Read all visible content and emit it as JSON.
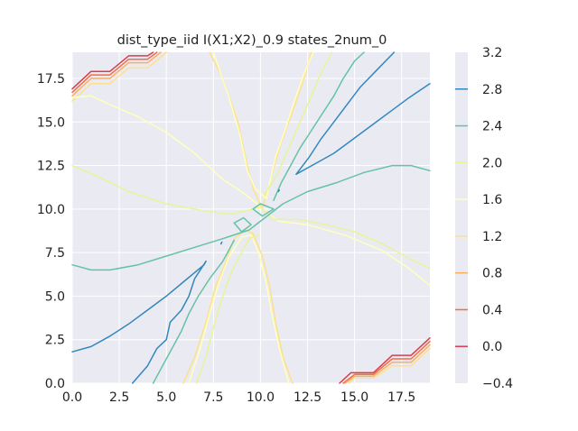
{
  "chart_data": {
    "type": "contour",
    "title": "dist_type_iid I(X1;X2)_0.9 states_2num_0",
    "xlabel": "",
    "ylabel": "",
    "xlim": [
      0,
      19
    ],
    "ylim": [
      0,
      19
    ],
    "x_ticks": [
      0.0,
      2.5,
      5.0,
      7.5,
      10.0,
      12.5,
      15.0,
      17.5
    ],
    "x_tick_labels": [
      "0.0",
      "2.5",
      "5.0",
      "7.5",
      "10.0",
      "12.5",
      "15.0",
      "17.5"
    ],
    "y_ticks": [
      0.0,
      2.5,
      5.0,
      7.5,
      10.0,
      12.5,
      15.0,
      17.5
    ],
    "y_tick_labels": [
      "0.0",
      "2.5",
      "5.0",
      "7.5",
      "10.0",
      "12.5",
      "15.0",
      "17.5"
    ],
    "grid": true,
    "background_color": "#eaeaf2",
    "colorbar": {
      "ticks": [
        3.2,
        2.8,
        2.4,
        2.0,
        1.6,
        1.2,
        0.8,
        0.4,
        0.0,
        -0.4
      ],
      "tick_labels": [
        "3.2",
        "2.8",
        "2.4",
        "2.0",
        "1.6",
        "1.2",
        "0.8",
        "0.4",
        "0.0",
        "−0.4"
      ],
      "range": [
        -0.4,
        3.2
      ]
    },
    "levels": [
      {
        "level": 0.0,
        "color": "#d53e4f",
        "segments": [
          [
            [
              0,
              16.9
            ],
            [
              1,
              17.9
            ],
            [
              2,
              17.9
            ],
            [
              3,
              18.8
            ],
            [
              4,
              18.8
            ],
            [
              4.3,
              19
            ]
          ],
          [
            [
              14.2,
              0
            ],
            [
              14.8,
              0.6
            ],
            [
              16,
              0.6
            ],
            [
              17,
              1.6
            ],
            [
              18,
              1.6
            ],
            [
              19,
              2.6
            ]
          ]
        ]
      },
      {
        "level": 0.4,
        "color": "#f46d43",
        "segments": [
          [
            [
              0,
              16.7
            ],
            [
              1,
              17.7
            ],
            [
              2,
              17.7
            ],
            [
              3,
              18.6
            ],
            [
              4,
              18.6
            ],
            [
              4.5,
              19
            ]
          ],
          [
            [
              14.4,
              0
            ],
            [
              15,
              0.5
            ],
            [
              16,
              0.5
            ],
            [
              17,
              1.4
            ],
            [
              18,
              1.4
            ],
            [
              19,
              2.4
            ]
          ]
        ]
      },
      {
        "level": 0.8,
        "color": "#fdae61",
        "segments": [
          [
            [
              0,
              16.5
            ],
            [
              1,
              17.5
            ],
            [
              2,
              17.5
            ],
            [
              3,
              18.4
            ],
            [
              4,
              18.4
            ],
            [
              4.7,
              19
            ]
          ],
          [
            [
              14.5,
              0
            ],
            [
              15,
              0.4
            ],
            [
              16,
              0.4
            ],
            [
              17,
              1.2
            ],
            [
              18,
              1.2
            ],
            [
              19,
              2.2
            ]
          ]
        ]
      },
      {
        "level": 1.2,
        "color": "#fee08b",
        "segments": [
          [
            [
              0,
              16.2
            ],
            [
              1,
              17.2
            ],
            [
              2,
              17.2
            ],
            [
              3,
              18.1
            ],
            [
              4,
              18.1
            ],
            [
              5,
              19
            ]
          ],
          [
            [
              14.7,
              0
            ],
            [
              15,
              0.3
            ],
            [
              16,
              0.3
            ],
            [
              17,
              1.0
            ],
            [
              18,
              1.0
            ],
            [
              19,
              2.0
            ]
          ],
          [
            [
              7.3,
              19
            ],
            [
              8,
              17.5
            ],
            [
              8.8,
              15
            ],
            [
              9.3,
              12.5
            ],
            [
              9.6,
              11.2
            ],
            [
              10.1,
              10.0
            ],
            [
              11,
              13.5
            ],
            [
              11.5,
              15
            ],
            [
              12,
              16.5
            ],
            [
              12.3,
              17.5
            ],
            [
              12.7,
              19
            ]
          ],
          [
            [
              5.9,
              0
            ],
            [
              6.5,
              1.5
            ],
            [
              7.1,
              3.5
            ],
            [
              7.6,
              5.5
            ],
            [
              8.1,
              6.8
            ],
            [
              8.6,
              8.3
            ],
            [
              9.2,
              8.8
            ],
            [
              9.6,
              8.6
            ],
            [
              10.1,
              7.3
            ],
            [
              10.5,
              5.5
            ],
            [
              10.8,
              3.5
            ],
            [
              11.2,
              1.5
            ],
            [
              11.7,
              0
            ]
          ]
        ]
      },
      {
        "level": 1.6,
        "color": "#ffffbf",
        "segments": [
          [
            [
              0,
              16.4
            ],
            [
              1,
              16.5
            ],
            [
              2,
              16
            ],
            [
              3.5,
              15.3
            ],
            [
              5,
              14.4
            ],
            [
              6.5,
              13.2
            ],
            [
              8,
              11.7
            ],
            [
              9,
              11
            ],
            [
              9.7,
              10.4
            ],
            [
              10.4,
              9.7
            ],
            [
              11,
              9.3
            ],
            [
              12.5,
              9.1
            ],
            [
              14.5,
              8.5
            ],
            [
              16.5,
              7.6
            ],
            [
              18,
              6.5
            ],
            [
              19,
              5.6
            ]
          ],
          [
            [
              7.5,
              19
            ],
            [
              8.3,
              16.5
            ],
            [
              8.9,
              14.3
            ],
            [
              9.3,
              12.2
            ],
            [
              9.7,
              11.2
            ],
            [
              10.3,
              10.6
            ],
            [
              10.8,
              13
            ],
            [
              11.3,
              14.5
            ],
            [
              11.8,
              16.2
            ],
            [
              12.4,
              18
            ],
            [
              12.8,
              19
            ]
          ],
          [
            [
              6.2,
              0
            ],
            [
              6.8,
              2
            ],
            [
              7.3,
              4
            ],
            [
              7.8,
              5.8
            ],
            [
              8.3,
              7.2
            ],
            [
              9,
              8.4
            ],
            [
              9.5,
              8.5
            ],
            [
              9.9,
              7.5
            ],
            [
              10.3,
              5.8
            ],
            [
              10.6,
              4
            ],
            [
              11,
              2
            ],
            [
              11.5,
              0
            ]
          ]
        ]
      },
      {
        "level": 2.0,
        "color": "#e6f598",
        "segments": [
          [
            [
              0,
              12.5
            ],
            [
              1.5,
              11.8
            ],
            [
              3,
              11
            ],
            [
              5,
              10.3
            ],
            [
              7,
              9.9
            ],
            [
              8.4,
              9.7
            ],
            [
              9.2,
              9.9
            ],
            [
              10,
              10.1
            ],
            [
              10.7,
              9.4
            ],
            [
              12,
              9.4
            ],
            [
              13.5,
              9.1
            ],
            [
              15,
              8.7
            ],
            [
              16.5,
              8
            ],
            [
              18,
              7.1
            ],
            [
              19,
              6.6
            ]
          ],
          [
            [
              6.6,
              0
            ],
            [
              7.1,
              1.5
            ],
            [
              7.5,
              3.2
            ],
            [
              8,
              5
            ],
            [
              8.5,
              6.5
            ],
            [
              9,
              7.5
            ],
            [
              9.4,
              8.3
            ],
            [
              9.9,
              8.5
            ]
          ],
          [
            [
              10.2,
              10.8
            ],
            [
              10.9,
              12
            ],
            [
              11.5,
              13.5
            ],
            [
              12.1,
              15
            ],
            [
              12.7,
              16.5
            ],
            [
              13.3,
              18
            ],
            [
              13.8,
              19
            ]
          ]
        ]
      },
      {
        "level": 2.4,
        "color": "#66c2a5",
        "segments": [
          [
            [
              0,
              6.8
            ],
            [
              1,
              6.5
            ],
            [
              2,
              6.5
            ],
            [
              3.5,
              6.8
            ],
            [
              5,
              7.3
            ],
            [
              6.5,
              7.8
            ],
            [
              8,
              8.3
            ],
            [
              9.4,
              8.8
            ],
            [
              11.2,
              10.3
            ],
            [
              12.5,
              11
            ],
            [
              14,
              11.5
            ],
            [
              15.5,
              12.1
            ],
            [
              17,
              12.5
            ],
            [
              18,
              12.5
            ],
            [
              19,
              12.2
            ]
          ],
          [
            [
              4.3,
              0
            ],
            [
              4.8,
              1
            ],
            [
              5.3,
              2
            ],
            [
              5.8,
              3
            ],
            [
              6.2,
              4
            ],
            [
              6.7,
              5
            ],
            [
              7.3,
              6
            ],
            [
              8,
              7
            ],
            [
              8.6,
              8.2
            ]
          ],
          [
            [
              10.7,
              10.5
            ],
            [
              11.1,
              11.5
            ],
            [
              11.6,
              12.5
            ],
            [
              12.1,
              13.5
            ],
            [
              12.7,
              14.5
            ],
            [
              13.3,
              15.5
            ],
            [
              13.9,
              16.5
            ],
            [
              14.4,
              17.5
            ],
            [
              15,
              18.5
            ],
            [
              15.5,
              19
            ]
          ],
          [
            [
              8.6,
              9.2
            ],
            [
              9.1,
              9.5
            ],
            [
              9.5,
              9.1
            ],
            [
              9,
              8.7
            ],
            [
              8.6,
              9.2
            ]
          ],
          [
            [
              9.6,
              10.0
            ],
            [
              10.0,
              10.3
            ],
            [
              10.7,
              10.0
            ],
            [
              10.1,
              9.6
            ],
            [
              9.6,
              10.0
            ]
          ]
        ]
      },
      {
        "level": 2.8,
        "color": "#3288bd",
        "segments": [
          [
            [
              0,
              1.8
            ],
            [
              1,
              2.1
            ],
            [
              2,
              2.7
            ],
            [
              3,
              3.4
            ],
            [
              4,
              4.2
            ],
            [
              5,
              5
            ],
            [
              6,
              5.9
            ],
            [
              7,
              6.8
            ],
            [
              7.1,
              7
            ]
          ],
          [
            [
              3.2,
              0
            ],
            [
              4,
              1
            ],
            [
              4.5,
              2
            ],
            [
              5,
              2.5
            ],
            [
              5.2,
              3.5
            ],
            [
              5.8,
              4.2
            ],
            [
              6.2,
              5
            ],
            [
              6.5,
              6
            ],
            [
              7.1,
              7
            ]
          ],
          [
            [
              11.9,
              12
            ],
            [
              12.9,
              12.6
            ],
            [
              13.9,
              13.2
            ],
            [
              14.9,
              14
            ],
            [
              15.9,
              14.8
            ],
            [
              16.9,
              15.6
            ],
            [
              17.9,
              16.4
            ],
            [
              19,
              17.2
            ]
          ],
          [
            [
              11.9,
              12
            ],
            [
              12.6,
              13
            ],
            [
              13.2,
              14
            ],
            [
              13.9,
              15
            ],
            [
              14.6,
              16
            ],
            [
              15.3,
              17
            ],
            [
              16.2,
              18
            ],
            [
              17.1,
              19
            ]
          ],
          [
            [
              7.9,
              8.0
            ],
            [
              7.95,
              8.1
            ]
          ],
          [
            [
              10.95,
              11.0
            ],
            [
              11.0,
              11.1
            ]
          ]
        ]
      }
    ]
  }
}
